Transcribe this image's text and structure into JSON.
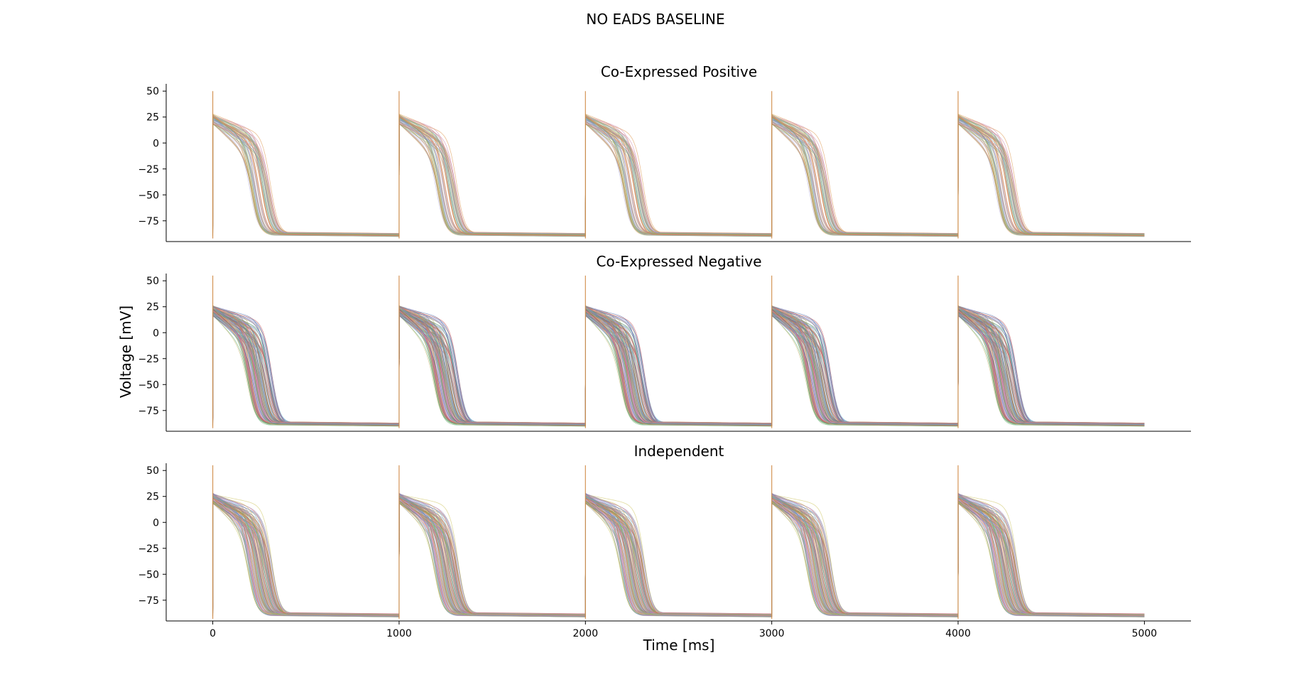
{
  "figure": {
    "suptitle": "NO EADS BASELINE",
    "xlabel": "Time [ms]",
    "ylabel": "Voltage [mV]"
  },
  "chart_data": [
    {
      "type": "line",
      "title": "Co-Expressed Positive",
      "xlim": [
        -250,
        5250
      ],
      "ylim": [
        -95,
        57
      ],
      "yticks": [
        50,
        25,
        0,
        -25,
        -50,
        -75
      ],
      "xticks": [],
      "show_xtick_labels": false,
      "beats": {
        "period_ms": 1000,
        "count": 5,
        "last_end_ms": 5000
      },
      "action_potential": {
        "resting_mv": -88,
        "peak_mv": 50,
        "plateau_start_mv": 24,
        "apd_range_ms": [
          200,
          310
        ],
        "plateau_drop_mv": [
          15,
          38
        ],
        "trace_count": 60,
        "stroke_opacity": 0.55
      },
      "palette": [
        "#8c7fbf",
        "#d98b3a",
        "#7fb36a",
        "#b79c6a",
        "#c97aa0",
        "#e0a060",
        "#a8a0d0",
        "#6f9ec7",
        "#cc8855",
        "#9bbb7a"
      ]
    },
    {
      "type": "line",
      "title": "Co-Expressed Negative",
      "xlim": [
        -250,
        5250
      ],
      "ylim": [
        -95,
        57
      ],
      "yticks": [
        50,
        25,
        0,
        -25,
        -50,
        -75
      ],
      "xticks": [],
      "show_xtick_labels": false,
      "beats": {
        "period_ms": 1000,
        "count": 5,
        "last_end_ms": 5000
      },
      "action_potential": {
        "resting_mv": -88,
        "peak_mv": 55,
        "plateau_start_mv": 22,
        "apd_range_ms": [
          190,
          320
        ],
        "plateau_drop_mv": [
          10,
          40
        ],
        "trace_count": 110,
        "stroke_opacity": 0.6
      },
      "palette": [
        "#4c72b0",
        "#dd8452",
        "#55a868",
        "#c44e52",
        "#8172b3",
        "#937860",
        "#da8bc3",
        "#8c8c8c",
        "#ccb974",
        "#64b5cd"
      ]
    },
    {
      "type": "line",
      "title": "Independent",
      "xlim": [
        -250,
        5250
      ],
      "ylim": [
        -95,
        57
      ],
      "yticks": [
        50,
        25,
        0,
        -25,
        -50,
        -75
      ],
      "xticks": [
        0,
        1000,
        2000,
        3000,
        4000,
        5000
      ],
      "show_xtick_labels": true,
      "beats": {
        "period_ms": 1000,
        "count": 5,
        "last_end_ms": 5000
      },
      "action_potential": {
        "resting_mv": -89,
        "peak_mv": 55,
        "plateau_start_mv": 24,
        "apd_range_ms": [
          190,
          320
        ],
        "plateau_drop_mv": [
          10,
          40
        ],
        "trace_count": 110,
        "stroke_opacity": 0.55
      },
      "palette": [
        "#8c7fbf",
        "#e39a4f",
        "#6fb05a",
        "#d05a5a",
        "#9a88c4",
        "#a08060",
        "#e09ccf",
        "#9a9a9a",
        "#c9c050",
        "#5aa8c8"
      ]
    }
  ]
}
